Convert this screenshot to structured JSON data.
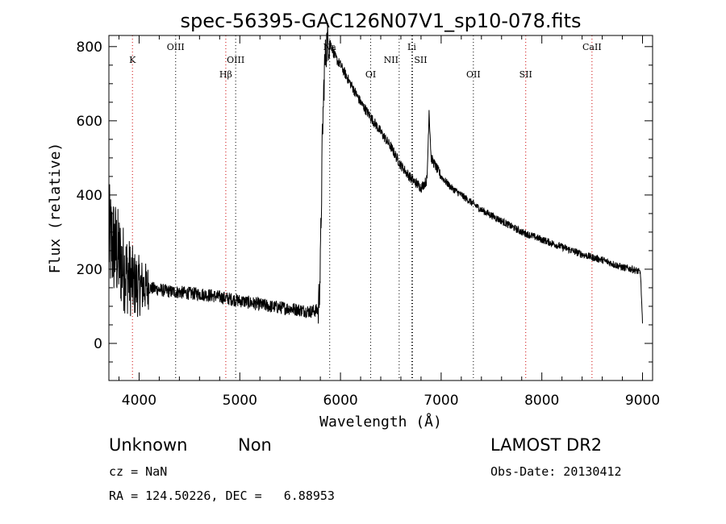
{
  "chart_data": {
    "type": "line",
    "title": "spec-56395-GAC126N07V1_sp10-078.fits",
    "xlabel": "Wavelength (Å)",
    "ylabel": "Flux (relative)",
    "xlim": [
      3700,
      9100
    ],
    "ylim": [
      -100,
      830
    ],
    "xticks": [
      4000,
      5000,
      6000,
      7000,
      8000,
      9000
    ],
    "yticks": [
      0,
      200,
      400,
      600,
      800
    ],
    "grid": false,
    "line_color": "#000000",
    "marker_color": "#cc0000",
    "series": [
      {
        "x": [
          3700,
          3750,
          3800,
          3850,
          3900,
          3950,
          4000,
          4100,
          4200,
          4300,
          4400,
          4500,
          4600,
          4700,
          4800,
          4900,
          5000,
          5100,
          5200,
          5300,
          5400,
          5500,
          5600,
          5700,
          5780,
          5800,
          5820,
          5840,
          5860,
          5880,
          5900,
          5950,
          6000,
          6100,
          6200,
          6300,
          6400,
          6500,
          6600,
          6700,
          6800,
          6860,
          6880,
          6900,
          7000,
          7100,
          7200,
          7300,
          7400,
          7500,
          7600,
          7700,
          7800,
          7900,
          8000,
          8100,
          8200,
          8300,
          8400,
          8500,
          8600,
          8700,
          8800,
          8900,
          8950,
          8980,
          9000
        ],
        "y": [
          280,
          260,
          230,
          200,
          180,
          160,
          155,
          150,
          145,
          140,
          138,
          135,
          133,
          130,
          125,
          120,
          115,
          110,
          105,
          100,
          97,
          94,
          90,
          86,
          90,
          200,
          550,
          735,
          800,
          820,
          810,
          770,
          750,
          700,
          650,
          610,
          570,
          530,
          480,
          445,
          420,
          440,
          630,
          500,
          450,
          420,
          400,
          380,
          360,
          345,
          330,
          315,
          300,
          290,
          280,
          270,
          260,
          250,
          240,
          232,
          225,
          215,
          205,
          200,
          195,
          190,
          50
        ]
      }
    ],
    "spectral_lines": [
      {
        "label": "K",
        "x": 3934,
        "color": "#cc0000"
      },
      {
        "label": "OIII",
        "x": 4363,
        "color": "#000000"
      },
      {
        "label": "Hβ",
        "x": 4861,
        "color": "#cc0000"
      },
      {
        "label": "OIII",
        "x": 4959,
        "color": "#000000"
      },
      {
        "label": "Na",
        "x": 5893,
        "color": "#000000"
      },
      {
        "label": "OI",
        "x": 6300,
        "color": "#000000"
      },
      {
        "label": "NII",
        "x": 6583,
        "color": "#000000"
      },
      {
        "label": "Li",
        "x": 6708,
        "color": "#000000"
      },
      {
        "label": "SII",
        "x": 6716,
        "color": "#000000"
      },
      {
        "label": "OII",
        "x": 7320,
        "color": "#000000"
      },
      {
        "label": "SII",
        "x": 7840,
        "color": "#cc0000"
      },
      {
        "label": "CaII",
        "x": 8498,
        "color": "#cc0000"
      }
    ]
  },
  "info": {
    "class_label": "Unknown",
    "subclass_label": "Non",
    "survey": "LAMOST DR2",
    "cz": "cz = NaN",
    "obs_date": "Obs-Date: 20130412",
    "coords": "RA = 124.50226, DEC =   6.88953"
  }
}
